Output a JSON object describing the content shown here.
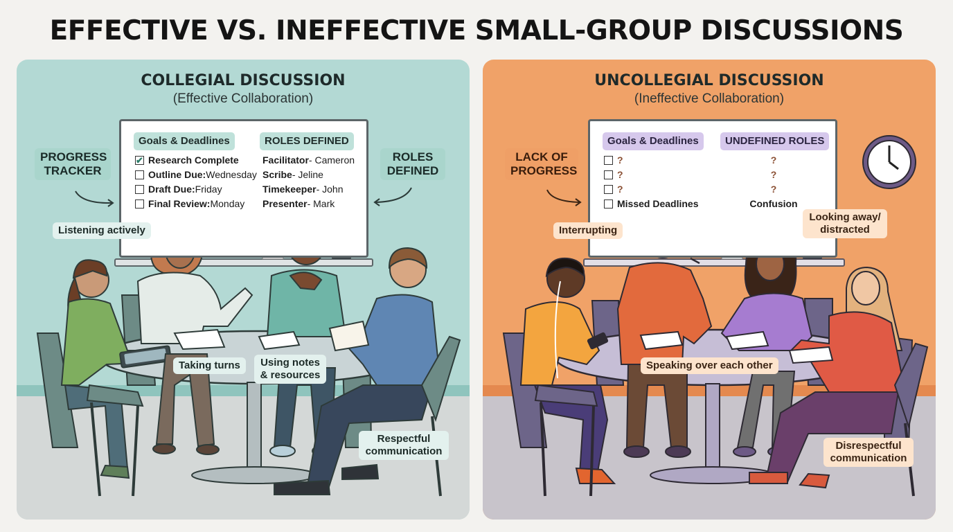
{
  "title": "EFFECTIVE VS. INEFFECTIVE SMALL-GROUP DISCUSSIONS",
  "left": {
    "heading": "COLLEGIAL DISCUSSION",
    "subheading": "(Effective Collaboration)",
    "board": {
      "goals_header": "Goals & Deadlines",
      "roles_header": "ROLES DEFINED",
      "goals": [
        {
          "label": "Research Complete",
          "detail": "",
          "checked": true
        },
        {
          "label": "Outline Due:",
          "detail": " Wednesday",
          "checked": false
        },
        {
          "label": "Draft Due:",
          "detail": " Friday",
          "checked": false
        },
        {
          "label": "Final Review:",
          "detail": " Monday",
          "checked": false
        }
      ],
      "roles": [
        {
          "role": "Facilitator",
          "name": " - Cameron"
        },
        {
          "role": "Scribe",
          "name": " - Jeline"
        },
        {
          "role": "Timekeeper",
          "name": " - John"
        },
        {
          "role": "Presenter",
          "name": " - Mark"
        }
      ]
    },
    "callouts": {
      "progress": "PROGRESS TRACKER",
      "roles": "ROLES DEFINED",
      "listening": "Listening actively",
      "turns": "Taking turns",
      "notes": "Using notes & resources",
      "respect": "Respectful communication"
    },
    "colors": {
      "background": "#b3d9d4",
      "floor": "#d4d8d7",
      "table": "#c9d4d6"
    }
  },
  "right": {
    "heading": "UNCOLLEGIAL DISCUSSION",
    "subheading": "(Ineffective Collaboration)",
    "board": {
      "goals_header": "Goals & Deadlines",
      "roles_header": "UNDEFINED ROLES",
      "goals": [
        {
          "label": "?",
          "checked": false
        },
        {
          "label": "?",
          "checked": false
        },
        {
          "label": "?",
          "checked": false
        },
        {
          "label": "Missed Deadlines",
          "checked": false
        }
      ],
      "roles": [
        "?",
        "?",
        "?",
        "Confusion"
      ]
    },
    "callouts": {
      "progress": "LACK OF PROGRESS",
      "interrupting": "Interrupting",
      "distracted": "Looking away/ distracted",
      "speaking": "Speaking over each other",
      "disrespect": "Disrespectful communication"
    },
    "colors": {
      "background": "#f0a268",
      "floor": "#c8c4cb",
      "table": "#c6bed6"
    }
  }
}
